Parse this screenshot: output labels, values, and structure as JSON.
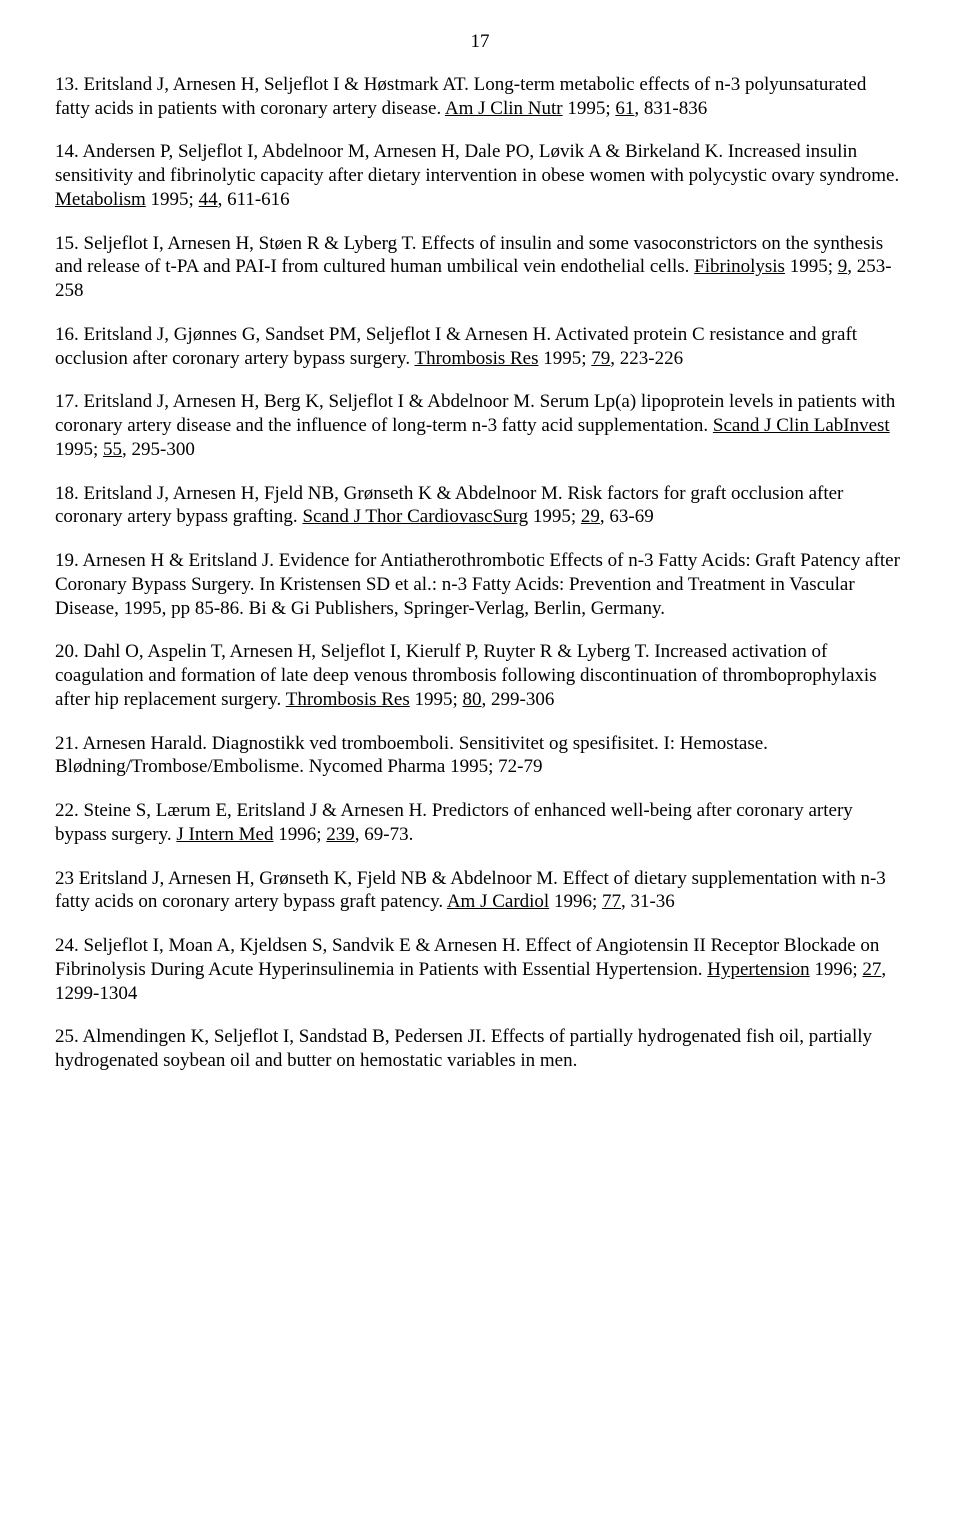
{
  "page_number": "17",
  "references": [
    {
      "num": "13. ",
      "authors": "Eritsland J, Arnesen H, Seljeflot I & Høstmark AT.",
      "title": "  Long-term metabolic effects of n-3 polyunsaturated fatty acids in patients with coronary artery disease.  ",
      "journal": "Am J Clin Nutr",
      "cite_pre": " 1995; ",
      "vol": "61",
      "cite_post": ", 831-836"
    },
    {
      "num": "14. ",
      "authors": "Andersen P, Seljeflot I, Abdelnoor M, Arnesen H, Dale PO, Løvik A & Birkeland K.",
      "title": "  Increased insulin sensitivity and  fibrinolytic capacity after dietary intervention in obese women with polycystic ovary syndrome.  ",
      "journal": "Metabolism",
      "cite_pre": " 1995; ",
      "vol": "44",
      "cite_post": ", 611-616"
    },
    {
      "num": "15. ",
      "authors": "Seljeflot I, Arnesen H, Støen R & Lyberg T.",
      "title": "  Effects of insulin and some vasoconstrictors on the synthesis and release of t-PA and PAI-I from cultured human umbilical vein endothelial cells.  ",
      "journal": "Fibrinolysis",
      "cite_pre": " 1995; ",
      "vol": "9",
      "cite_post": ", 253-258"
    },
    {
      "num": "16. ",
      "authors": "Eritsland J, Gjønnes G, Sandset PM, Seljeflot I & Arnesen H.",
      "title": "  Activated protein C resistance and graft occlusion after coronary artery bypass surgery.  ",
      "journal": "Thrombosis Res",
      "cite_pre": " 1995; ",
      "vol": "79",
      "cite_post": ", 223-226"
    },
    {
      "num": "17. ",
      "authors": "Eritsland J, Arnesen H, Berg K, Seljeflot I & Abdelnoor M.",
      "title": "  Serum Lp(a) lipoprotein levels in patients with coronary artery disease and the influence of long-term n-3 fatty acid supplementation.  ",
      "journal": "Scand J Clin LabInvest",
      "cite_pre": "  1995; ",
      "vol": "55",
      "cite_post": ", 295-300"
    },
    {
      "num": "18. ",
      "authors": "Eritsland J, Arnesen H, Fjeld NB, Grønseth K & Abdelnoor M.",
      "title": "  Risk factors for graft occlusion after coronary artery bypass grafting.  ",
      "journal": "Scand J Thor CardiovascSurg",
      "cite_pre": " 1995; ",
      "vol": "29",
      "cite_post": ", 63-69"
    },
    {
      "num": "19. ",
      "authors": "Arnesen H & Eritsland J.",
      "title": "  Evidence for Antiatherothrombotic Effects of n-3 Fatty Acids: Graft Patency after Coronary Bypass Surgery.  In Kristensen SD et al.: n-3 Fatty Acids: Prevention and Treatment in Vascular Disease, 1995, pp 85-86.  Bi & Gi Publishers, Springer-Verlag, Berlin, Germany.",
      "journal": "",
      "cite_pre": "",
      "vol": "",
      "cite_post": ""
    },
    {
      "num": "20. ",
      "authors": "Dahl O, Aspelin T, Arnesen H, Seljeflot I, Kierulf P, Ruyter R & Lyberg T.",
      "title": "  Increased activation of coagulation and formation of late deep venous thrombosis following  discontinuation of thromboprophylaxis after hip replacement surgery.  ",
      "journal": "Thrombosis Res",
      "cite_pre": " 1995; ",
      "vol": "80",
      "cite_post": ", 299-306"
    },
    {
      "num": "21. ",
      "authors": "Arnesen Harald.",
      "title": "  Diagnostikk ved tromboemboli.  Sensitivitet og spesifisitet.  I: Hemostase. Blødning/Trombose/Embolisme.  Nycomed Pharma 1995; 72-79",
      "journal": "",
      "cite_pre": "",
      "vol": "",
      "cite_post": ""
    },
    {
      "num": "22. ",
      "authors": "Steine S, Lærum E, Eritsland J & Arnesen H.",
      "title": "  Predictors of enhanced well-being after coronary artery bypass surgery.  ",
      "journal": "J Intern Med",
      "cite_pre": " 1996; ",
      "vol": "239",
      "cite_post": ", 69-73."
    },
    {
      "num": "23 ",
      "authors": "Eritsland J, Arnesen H, Grønseth K, Fjeld NB & Abdelnoor M.",
      "title": "  Effect of dietary supplementation with n-3 fatty acids on coronary artery bypass graft patency.  ",
      "journal": "Am J Cardiol",
      "cite_pre": " 1996; ",
      "vol": "77",
      "cite_post": ", 31-36"
    },
    {
      "num": "24. ",
      "authors": "Seljeflot I, Moan A, Kjeldsen S, Sandvik E & Arnesen H.",
      "title": "  Effect of Angiotensin II Receptor Blockade on Fibrinolysis During Acute Hyperinsulinemia in Patients with Essential Hypertension.   ",
      "journal": "Hypertension",
      "cite_pre": " 1996; ",
      "vol": "27",
      "cite_post": ", 1299-1304"
    },
    {
      "num": "25. ",
      "authors": "Almendingen K, Seljeflot I, Sandstad B, Pedersen JI.",
      "title": " Effects of partially hydrogenated fish oil, partially hydrogenated soybean oil and butter on hemostatic variables in men.",
      "journal": "",
      "cite_pre": "",
      "vol": "",
      "cite_post": ""
    }
  ]
}
